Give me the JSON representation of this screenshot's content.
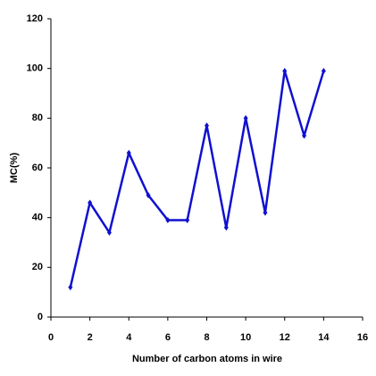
{
  "chart_data": {
    "type": "line",
    "x_label": "Number of carbon atoms in wire",
    "y_label": "MC(%)",
    "x": [
      1,
      2,
      3,
      4,
      5,
      6,
      7,
      8,
      9,
      10,
      11,
      12,
      13,
      14
    ],
    "series": [
      {
        "name": "MC",
        "color": "#1010d0",
        "values": [
          12,
          46,
          34,
          66,
          49,
          39,
          39,
          77,
          36,
          80,
          42,
          99,
          73,
          99
        ]
      }
    ],
    "xlim": [
      0,
      16
    ],
    "xticks": [
      0,
      2,
      4,
      6,
      8,
      10,
      12,
      14,
      16
    ],
    "ylim": [
      0,
      120
    ],
    "yticks": [
      0,
      20,
      40,
      60,
      80,
      100,
      120
    ],
    "grid": false
  }
}
